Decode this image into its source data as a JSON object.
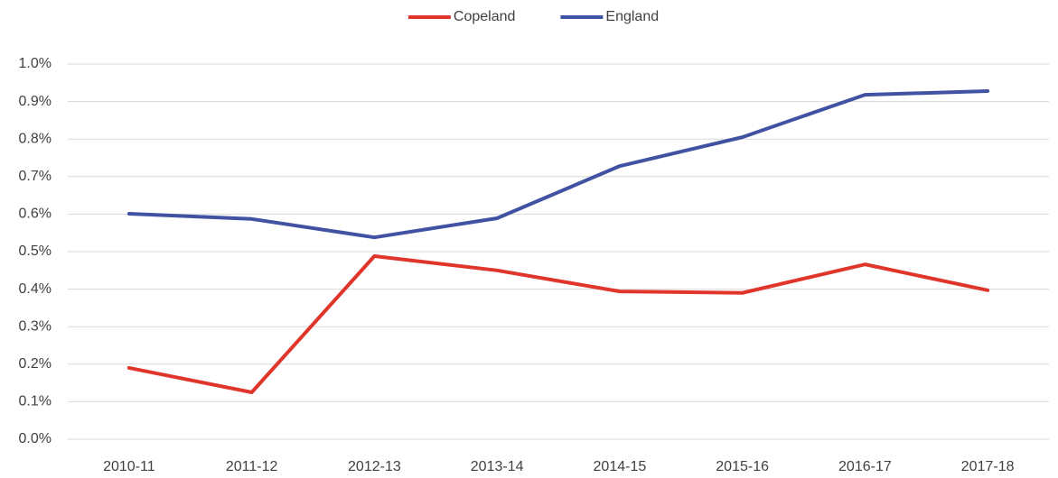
{
  "chart_data": {
    "type": "line",
    "categories": [
      "2010-11",
      "2011-12",
      "2012-13",
      "2013-14",
      "2014-15",
      "2015-16",
      "2016-17",
      "2017-18"
    ],
    "series": [
      {
        "name": "Copeland",
        "color": "#e0352b",
        "values": [
          0.19,
          0.125,
          0.488,
          0.45,
          0.394,
          0.39,
          0.466,
          0.397
        ]
      },
      {
        "name": "England",
        "color": "#4252a3",
        "values": [
          0.601,
          0.587,
          0.538,
          0.589,
          0.728,
          0.805,
          0.918,
          0.928
        ]
      }
    ],
    "ylim": [
      0,
      1.0
    ],
    "yticks": [
      {
        "value": 0,
        "label": "0.0%"
      },
      {
        "value": 0.1,
        "label": "0.1%"
      },
      {
        "value": 0.2,
        "label": "0.2%"
      },
      {
        "value": 0.3,
        "label": "0.3%"
      },
      {
        "value": 0.4,
        "label": "0.4%"
      },
      {
        "value": 0.5,
        "label": "0.5%"
      },
      {
        "value": 0.6,
        "label": "0.6%"
      },
      {
        "value": 0.7,
        "label": "0.7%"
      },
      {
        "value": 0.8,
        "label": "0.8%"
      },
      {
        "value": 0.9,
        "label": "0.9%"
      },
      {
        "value": 1.0,
        "label": "1.0%"
      }
    ],
    "grid": true,
    "legend": "top"
  }
}
